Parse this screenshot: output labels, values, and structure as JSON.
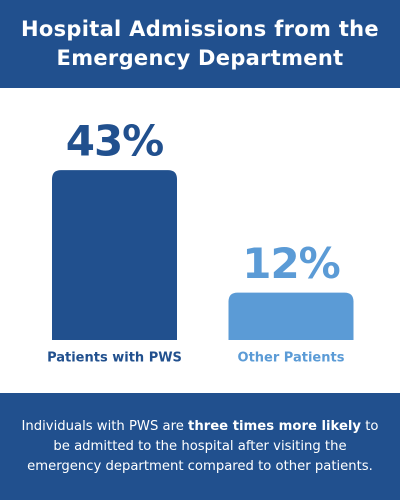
{
  "chart_data": {
    "type": "bar",
    "title": "Hospital Admissions from the Emergency Department",
    "categories": [
      "Patients with PWS",
      "Other Patients"
    ],
    "values": [
      43,
      12
    ],
    "value_labels": [
      "43%",
      "12%"
    ],
    "colors": [
      "#21508e",
      "#5b9bd6"
    ],
    "note": {
      "before": "Individuals with PWS are ",
      "emphasis": "three times more likely",
      "after": " to be admitted to the hospital after visiting the emergency department compared to other patients."
    }
  }
}
